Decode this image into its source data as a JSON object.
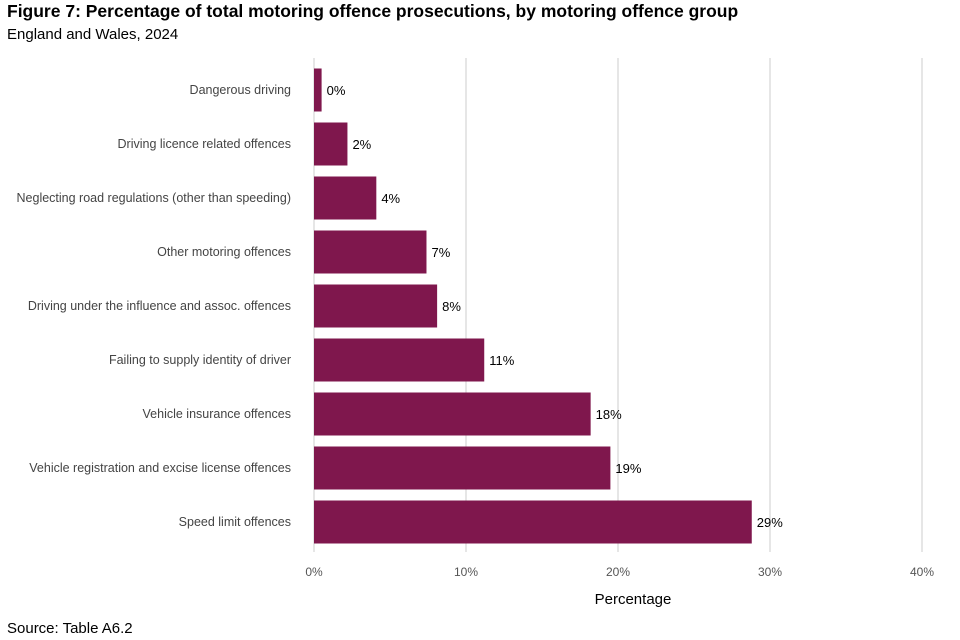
{
  "title": "Figure 7: Percentage of total motoring offence prosecutions, by motoring offence group",
  "subtitle": "England and Wales, 2024",
  "source": "Source: Table A6.2",
  "chart_data": {
    "type": "bar",
    "orientation": "horizontal",
    "categories": [
      "Dangerous driving",
      "Driving licence related offences",
      "Neglecting road regulations (other than speeding)",
      "Other motoring offences",
      "Driving under the influence and assoc. offences",
      "Failing to supply identity of driver",
      "Vehicle insurance offences",
      "Vehicle registration and excise license offences",
      "Speed limit offences"
    ],
    "values": [
      0.5,
      2.2,
      4.1,
      7.4,
      8.1,
      11.2,
      18.2,
      19.5,
      28.8
    ],
    "data_labels": [
      "0%",
      "2%",
      "4%",
      "7%",
      "8%",
      "11%",
      "18%",
      "19%",
      "29%"
    ],
    "xlabel": "Percentage",
    "ylabel": "",
    "xlim": [
      0,
      40
    ],
    "xticks": [
      0,
      10,
      20,
      30,
      40
    ],
    "xtick_labels": [
      "0%",
      "10%",
      "20%",
      "30%",
      "40%"
    ],
    "grid": "vertical",
    "legend": "none",
    "bar_color": "#7f174d",
    "grid_color": "#cccccc"
  }
}
